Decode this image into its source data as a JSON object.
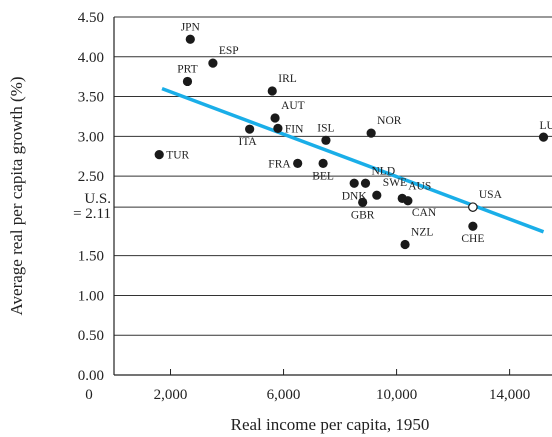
{
  "chart_data": {
    "type": "scatter",
    "xlabel": "Real income per capita, 1950",
    "ylabel": "Average real per capita growth (%)",
    "xlim": [
      0,
      15500
    ],
    "ylim": [
      0,
      4.5
    ],
    "x_ticks": [
      {
        "value": 0,
        "label": "0"
      },
      {
        "value": 2000,
        "label": "2,000"
      },
      {
        "value": 6000,
        "label": "6,000"
      },
      {
        "value": 10000,
        "label": "10,000"
      },
      {
        "value": 14000,
        "label": "14,000"
      }
    ],
    "y_ticks": [
      {
        "value": 0,
        "label": "0.00"
      },
      {
        "value": 0.5,
        "label": "0.50"
      },
      {
        "value": 1.0,
        "label": "1.00"
      },
      {
        "value": 1.5,
        "label": "1.50"
      },
      {
        "value": 2.5,
        "label": "2.50"
      },
      {
        "value": 3.0,
        "label": "3.00"
      },
      {
        "value": 3.5,
        "label": "3.50"
      },
      {
        "value": 4.0,
        "label": "4.00"
      },
      {
        "value": 4.5,
        "label": "4.50"
      }
    ],
    "grid": "horizontal",
    "reference_line": {
      "y": 2.11,
      "label_line1": "U.S.",
      "label_line2": "= 2.11"
    },
    "points": [
      {
        "label": "JPN",
        "x": 2700,
        "y": 4.22,
        "label_pos": "above"
      },
      {
        "label": "ESP",
        "x": 3500,
        "y": 3.92,
        "label_pos": "above-right"
      },
      {
        "label": "PRT",
        "x": 2600,
        "y": 3.69,
        "label_pos": "above"
      },
      {
        "label": "IRL",
        "x": 5600,
        "y": 3.57,
        "label_pos": "above-right"
      },
      {
        "label": "AUT",
        "x": 5700,
        "y": 3.23,
        "label_pos": "above-right"
      },
      {
        "label": "FIN",
        "x": 5800,
        "y": 3.1,
        "label_pos": "right"
      },
      {
        "label": "ITA",
        "x": 4800,
        "y": 3.09,
        "label_pos": "below-left"
      },
      {
        "label": "ISL",
        "x": 7500,
        "y": 2.95,
        "label_pos": "above"
      },
      {
        "label": "NOR",
        "x": 9100,
        "y": 3.04,
        "label_pos": "above-right"
      },
      {
        "label": "LUX",
        "x": 15200,
        "y": 2.99,
        "label_pos": "left-above"
      },
      {
        "label": "TUR",
        "x": 1600,
        "y": 2.77,
        "label_pos": "right"
      },
      {
        "label": "FRA",
        "x": 6500,
        "y": 2.66,
        "label_pos": "left"
      },
      {
        "label": "BEL",
        "x": 7400,
        "y": 2.66,
        "label_pos": "below"
      },
      {
        "label": "NLD",
        "x": 8900,
        "y": 2.41,
        "label_pos": "above-right"
      },
      {
        "label": "DNK",
        "x": 8500,
        "y": 2.41,
        "label_pos": "below"
      },
      {
        "label": "GBR",
        "x": 8800,
        "y": 2.17,
        "label_pos": "below"
      },
      {
        "label": "SWE",
        "x": 9300,
        "y": 2.26,
        "label_pos": "above-right"
      },
      {
        "label": "AUS",
        "x": 10200,
        "y": 2.22,
        "label_pos": "above-right"
      },
      {
        "label": "CAN",
        "x": 10400,
        "y": 2.19,
        "label_pos": "below-right"
      },
      {
        "label": "USA",
        "x": 12700,
        "y": 2.11,
        "label_pos": "above-right",
        "hollow": true
      },
      {
        "label": "CHE",
        "x": 12700,
        "y": 1.87,
        "label_pos": "below"
      },
      {
        "label": "NZL",
        "x": 10300,
        "y": 1.64,
        "label_pos": "above-right"
      }
    ],
    "trendline": {
      "x": [
        1700,
        15200
      ],
      "y": [
        3.6,
        1.8
      ]
    },
    "colors": {
      "points": "#1a1a1a",
      "trendline": "#1aaee8",
      "grid": "#333333"
    }
  }
}
